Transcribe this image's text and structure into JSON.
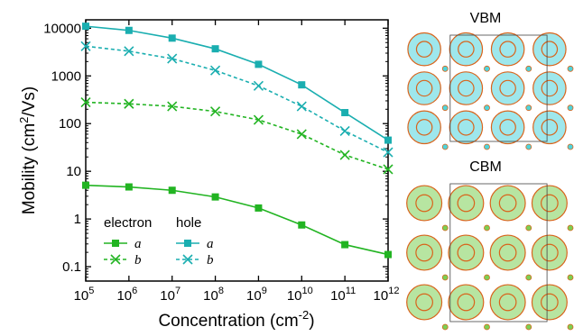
{
  "chart_data": {
    "type": "line",
    "xlabel": "Concentration (cm",
    "xlabel_exp": "-2",
    "xlabel_end": ")",
    "ylabel": "Mobility (cm",
    "ylabel_exp": "2",
    "ylabel_end": "/Vs)",
    "xscale": "log",
    "yscale": "log",
    "xlim": [
      100000,
      1000000000000
    ],
    "ylim": [
      0.05,
      15000
    ],
    "x_ticks": [
      {
        "base": "10",
        "exp": "5"
      },
      {
        "base": "10",
        "exp": "6"
      },
      {
        "base": "10",
        "exp": "7"
      },
      {
        "base": "10",
        "exp": "8"
      },
      {
        "base": "10",
        "exp": "9"
      },
      {
        "base": "10",
        "exp": "10"
      },
      {
        "base": "10",
        "exp": "11"
      },
      {
        "base": "10",
        "exp": "12"
      }
    ],
    "y_ticks": [
      {
        "value": 0.1,
        "label": "0.1"
      },
      {
        "value": 1,
        "label": "1"
      },
      {
        "value": 10,
        "label": "10"
      },
      {
        "value": 100,
        "label": "100"
      },
      {
        "value": 1000,
        "label": "1000"
      },
      {
        "value": 10000,
        "label": "10000"
      }
    ],
    "x": [
      100000,
      1000000,
      10000000,
      100000000,
      1000000000,
      10000000000,
      100000000000,
      1000000000000
    ],
    "series": [
      {
        "group": "hole",
        "name": "a",
        "color": "#1aaeb0",
        "marker": "square",
        "dash": "solid",
        "values": [
          11000,
          9000,
          6200,
          3700,
          1750,
          650,
          170,
          45
        ]
      },
      {
        "group": "hole",
        "name": "b",
        "color": "#1aaeb0",
        "marker": "x",
        "dash": "dashed",
        "values": [
          4200,
          3300,
          2300,
          1300,
          620,
          230,
          70,
          25
        ]
      },
      {
        "group": "electron",
        "name": "a",
        "color": "#22b422",
        "marker": "square",
        "dash": "solid",
        "values": [
          5.1,
          4.7,
          4.0,
          2.9,
          1.7,
          0.75,
          0.29,
          0.18
        ]
      },
      {
        "group": "electron",
        "name": "b",
        "color": "#22b422",
        "marker": "x",
        "dash": "dashed",
        "values": [
          280,
          260,
          230,
          180,
          120,
          60,
          22,
          11
        ]
      }
    ],
    "legend": {
      "placement": "bottom-left",
      "groups": [
        {
          "title": "electron",
          "color": "#22b422",
          "entries": [
            "a",
            "b"
          ]
        },
        {
          "title": "hole",
          "color": "#1aaeb0",
          "entries": [
            "a",
            "b"
          ]
        }
      ]
    },
    "grid": false
  },
  "panels": [
    {
      "label": "VBM",
      "color": "#4fd4dc"
    },
    {
      "label": "CBM",
      "color": "#7ccf54"
    }
  ]
}
